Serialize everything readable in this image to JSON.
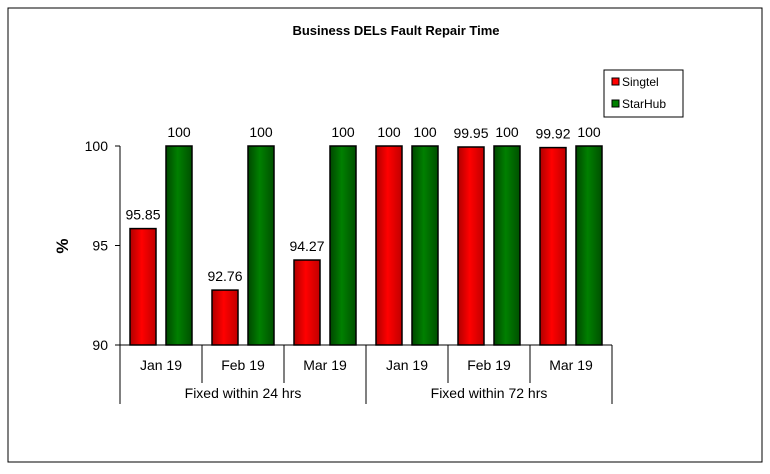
{
  "chart_data": {
    "type": "bar",
    "title": "Business DELs Fault Repair Time",
    "ylabel": "%",
    "xlabel": "",
    "ylim": [
      90,
      100
    ],
    "yticks": [
      "90",
      "95",
      "100"
    ],
    "categories": [
      "Jan 19",
      "Feb 19",
      "Mar 19",
      "Jan 19",
      "Feb 19",
      "Mar 19"
    ],
    "groups": [
      {
        "label": "Fixed within 24 hrs",
        "span": 3
      },
      {
        "label": "Fixed within 72 hrs",
        "span": 3
      }
    ],
    "series": [
      {
        "name": "Singtel",
        "color": "#ff0000",
        "values": [
          95.85,
          92.76,
          94.27,
          100,
          99.95,
          99.92
        ],
        "labels": [
          "95.85",
          "92.76",
          "94.27",
          "100",
          "99.95",
          "99.92"
        ]
      },
      {
        "name": "StarHub",
        "color": "#008000",
        "values": [
          100,
          100,
          100,
          100,
          100,
          100
        ],
        "labels": [
          "100",
          "100",
          "100",
          "100",
          "100",
          "100"
        ]
      }
    ],
    "legend": "top-right",
    "grid": false
  }
}
